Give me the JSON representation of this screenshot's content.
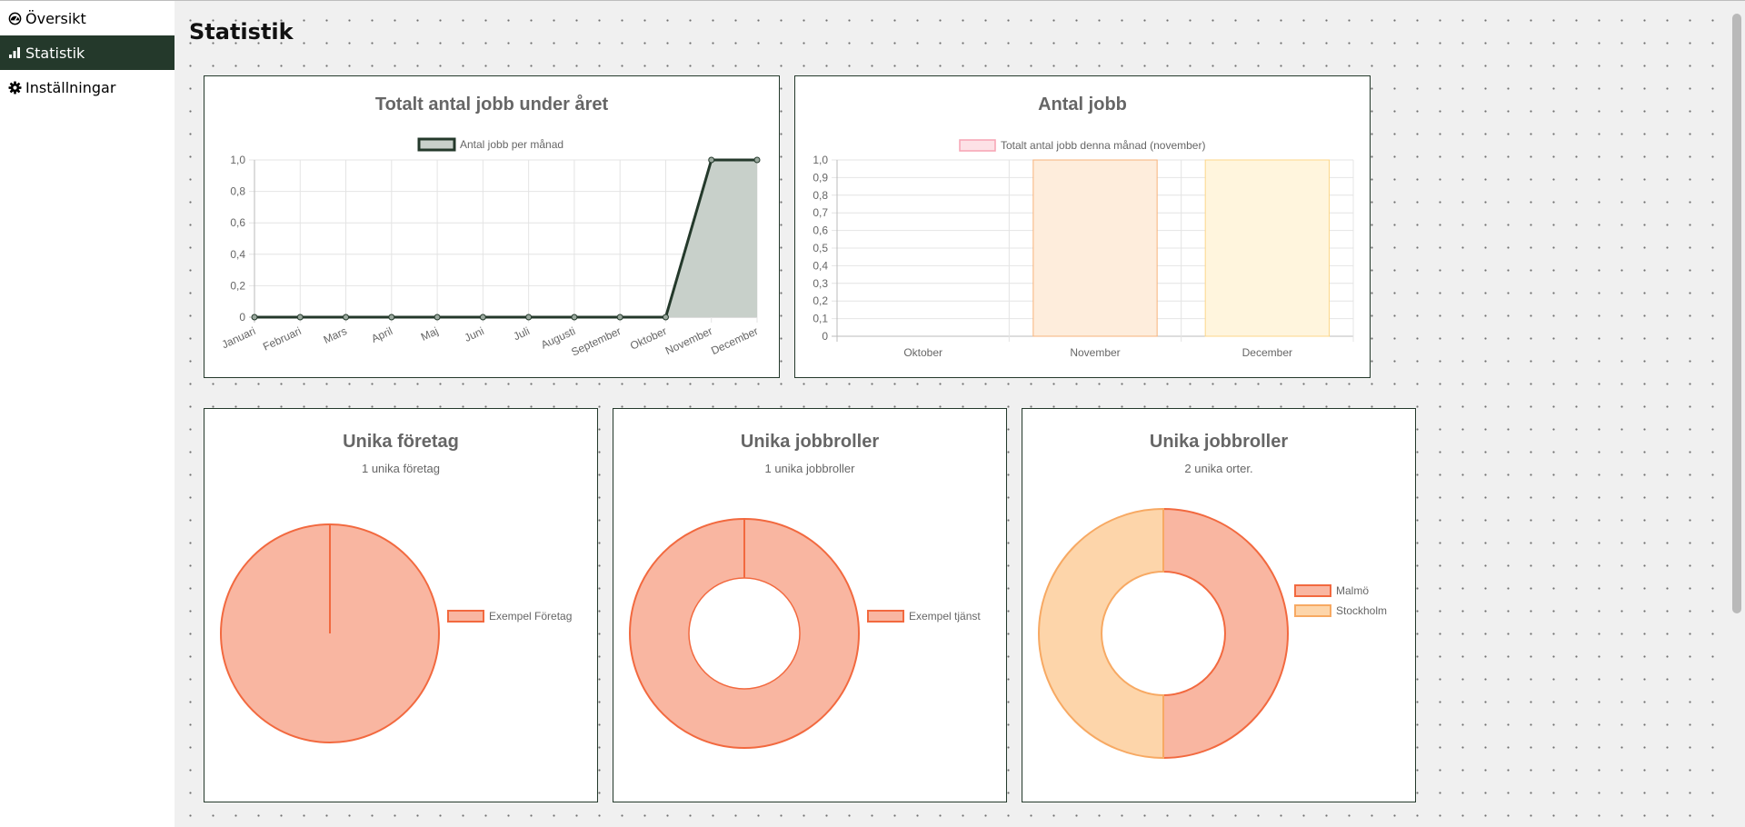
{
  "nav": {
    "items": [
      {
        "label": "Översikt",
        "icon": "dashboard-icon",
        "active": false
      },
      {
        "label": "Statistik",
        "icon": "bar-chart-icon",
        "active": true
      },
      {
        "label": "Inställningar",
        "icon": "gear-icon",
        "active": false
      }
    ]
  },
  "page": {
    "title": "Statistik"
  },
  "colors": {
    "accent": "#24392b",
    "salmon": "#f9b6a1",
    "salmon_border": "#f2693f",
    "peach": "#fdd5aa",
    "peach_border": "#f7a963",
    "pink_fill": "#fde1e6",
    "pink_border": "#f7a3b3",
    "orange_bar": "#feeddc",
    "orange_bar_border": "#f7b37c",
    "yellow_bar": "#fff5dd",
    "yellow_bar_border": "#fcd78a"
  },
  "chart_data": [
    {
      "type": "area",
      "title": "Totalt antal jobb under året",
      "legend": [
        "Antal jobb per månad"
      ],
      "categories": [
        "Januari",
        "Februari",
        "Mars",
        "April",
        "Maj",
        "Juni",
        "Juli",
        "Augusti",
        "September",
        "Oktober",
        "November",
        "December"
      ],
      "series": [
        {
          "name": "Antal jobb per månad",
          "values": [
            0,
            0,
            0,
            0,
            0,
            0,
            0,
            0,
            0,
            0,
            1,
            1
          ]
        }
      ],
      "ylim": [
        0,
        1
      ],
      "yticks": [
        "0",
        "0,2",
        "0,4",
        "0,6",
        "0,8",
        "1,0"
      ],
      "grid": true,
      "legend_position": "top"
    },
    {
      "type": "bar",
      "title": "Antal jobb",
      "legend": [
        "Totalt antal jobb denna månad (november)"
      ],
      "categories": [
        "Oktober",
        "November",
        "December"
      ],
      "series": [
        {
          "name": "Totalt antal jobb denna månad (november)",
          "values": [
            0,
            1,
            1
          ]
        }
      ],
      "ylim": [
        0,
        1
      ],
      "yticks": [
        "0",
        "0,1",
        "0,2",
        "0,3",
        "0,4",
        "0,5",
        "0,6",
        "0,7",
        "0,8",
        "0,9",
        "1,0"
      ],
      "grid": true,
      "legend_position": "top"
    },
    {
      "type": "pie",
      "title": "Unika företag",
      "subtitle": "1 unika företag",
      "labels": [
        "Exempel Företag"
      ],
      "values": [
        1
      ],
      "legend_position": "right"
    },
    {
      "type": "pie",
      "variant": "doughnut",
      "title": "Unika jobbroller",
      "subtitle": "1 unika jobbroller",
      "labels": [
        "Exempel tjänst"
      ],
      "values": [
        1
      ],
      "legend_position": "right"
    },
    {
      "type": "pie",
      "variant": "doughnut",
      "title": "Unika jobbroller",
      "subtitle": "2 unika orter.",
      "labels": [
        "Malmö",
        "Stockholm"
      ],
      "values": [
        1,
        1
      ],
      "legend_position": "right"
    }
  ]
}
